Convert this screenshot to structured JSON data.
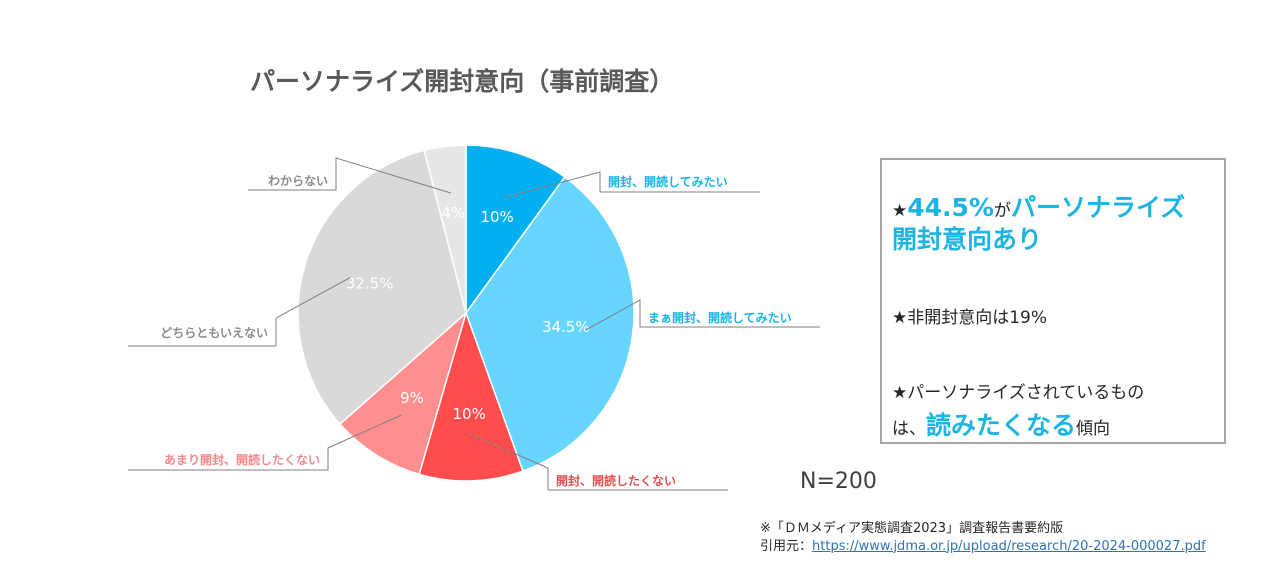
{
  "chart_data": {
    "type": "pie",
    "title": "パーソナライズ開封意向（事前調査）",
    "start_angle_deg": 0,
    "direction": "clockwise",
    "slices": [
      {
        "label": "開封、開読してみたい",
        "value": 10,
        "display": "10%",
        "color": "#00b0f0",
        "label_color": "#1bb4e3"
      },
      {
        "label": "まぁ開封、開読してみたい",
        "value": 34.5,
        "display": "34.5%",
        "color": "#66d5ff",
        "label_color": "#1bb4e3"
      },
      {
        "label": "開封、開読したくない",
        "value": 10,
        "display": "10%",
        "color": "#ff4c4c",
        "label_color": "#e05252"
      },
      {
        "label": "あまり開封、開読したくない",
        "value": 9,
        "display": "9%",
        "color": "#ff8f8f",
        "label_color": "#f08a8a"
      },
      {
        "label": "どちらともいえない",
        "value": 32.5,
        "display": "32.5%",
        "color": "#d9d9d9",
        "label_color": "#8c8c8c"
      },
      {
        "label": "わからない",
        "value": 4,
        "display": "4%",
        "color": "#e6e6e6",
        "label_color": "#8c8c8c"
      }
    ]
  },
  "n_label": "N=200",
  "summary": {
    "line1_star": "★",
    "line1_hl1": "44.5%",
    "line1_mid": "が",
    "line1_hl2": "パーソナライズ",
    "line2_hl": "開封意向あり",
    "line3": "★非開封意向は19%",
    "line4": "★パーソナライズされているもの",
    "line5_pre": "は、",
    "line5_hl": "読みたくなる",
    "line5_post": "傾向"
  },
  "source": {
    "line1": "※「ＤＭメディア実態調査2023」調査報告書要約版",
    "prefix": "引用元：",
    "url": "https://www.jdma.or.jp/upload/research/20-2024-000027.pdf"
  }
}
